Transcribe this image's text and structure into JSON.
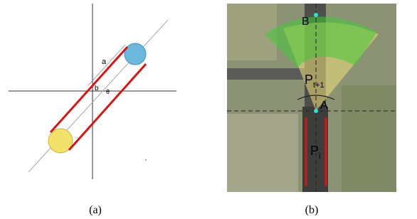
{
  "panel_a": {
    "label_a": "a",
    "label_b": "b",
    "label_theta": "θ",
    "caption": "(a)"
  },
  "panel_b": {
    "label_B": "B",
    "label_A": "A",
    "label_p_next": {
      "base": "P",
      "subscript": "t+1"
    },
    "label_p_i": {
      "base": "P",
      "subscript": "i"
    },
    "caption": "(b)"
  }
}
